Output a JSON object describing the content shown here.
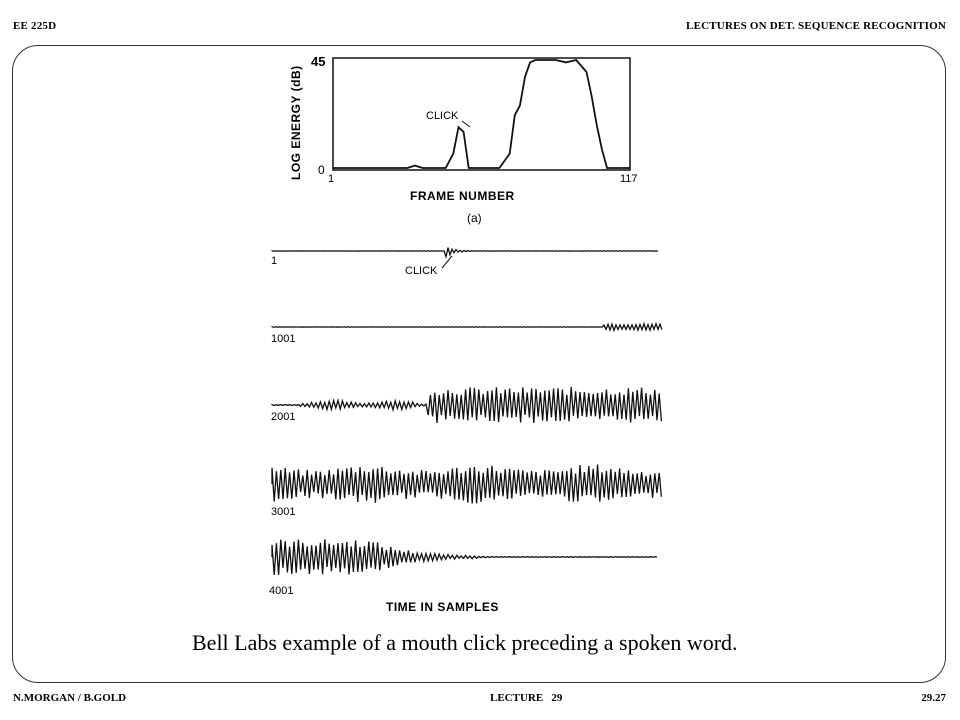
{
  "header": {
    "left": "EE 225D",
    "right": "LECTURES ON DET. SEQUENCE RECOGNITION"
  },
  "footer": {
    "left": "N.MORGAN / B.GOLD",
    "center": "LECTURE   29",
    "right": "29.27"
  },
  "figure": {
    "energy_plot": {
      "ylabel": "LOG ENERGY (dB)",
      "ymax_label": "45",
      "ymin_label": "0",
      "xmin_label": "1",
      "xmax_label": "117",
      "xlabel": "FRAME NUMBER",
      "panel_label": "(a)",
      "annotation": "CLICK"
    },
    "waveforms": {
      "annotation": "CLICK",
      "row_labels": [
        "1",
        "1001",
        "2001",
        "3001",
        "4001"
      ],
      "xlabel": "TIME IN SAMPLES"
    }
  },
  "caption": "Bell Labs example of a mouth click preceding a spoken word.",
  "chart_data": [
    {
      "type": "line",
      "xlabel": "FRAME NUMBER",
      "ylabel": "LOG ENERGY (dB)",
      "xlim": [
        1,
        117
      ],
      "ylim": [
        0,
        45
      ],
      "series": [
        {
          "x": [
            1,
            10,
            20,
            30,
            33,
            36,
            40,
            45,
            48,
            50,
            52,
            54,
            56,
            58,
            62,
            66,
            70,
            72,
            74,
            76,
            78,
            80,
            84,
            88,
            92,
            96,
            100,
            102,
            104,
            106,
            108,
            110,
            117
          ],
          "values": [
            0,
            0,
            0,
            0,
            1,
            0,
            0,
            0,
            6,
            17,
            15,
            0,
            0,
            0,
            0,
            0,
            6,
            22,
            26,
            38,
            44,
            45,
            45,
            45,
            44,
            45,
            40,
            30,
            18,
            8,
            0,
            0,
            0
          ]
        }
      ],
      "annotations": [
        "CLICK"
      ]
    }
  ]
}
